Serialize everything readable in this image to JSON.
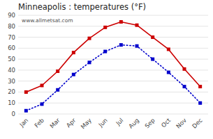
{
  "chart_data": {
    "type": "line",
    "title": "Minneapolis : temperatures (°F)",
    "categories": [
      "Jan",
      "Feb",
      "Mar",
      "Apr",
      "May",
      "Jun",
      "Jul",
      "Aug",
      "Sep",
      "Oct",
      "Nov",
      "Dec"
    ],
    "series": [
      {
        "color": "#cc0000",
        "line_style": "solid",
        "marker": "square",
        "values": [
          20,
          26,
          39,
          56,
          69,
          79,
          84,
          81,
          70,
          59,
          41,
          25
        ]
      },
      {
        "color": "#0000cc",
        "line_style": "dotted",
        "marker": "square",
        "values": [
          3,
          9,
          22,
          36,
          47,
          57,
          63,
          62,
          50,
          38,
          25,
          10
        ]
      }
    ],
    "ylim": [
      0,
      90
    ],
    "yticks": [
      0,
      10,
      20,
      30,
      40,
      50,
      60,
      70,
      80,
      90
    ],
    "grid": true,
    "annotation": "www.allmetsat.com"
  }
}
